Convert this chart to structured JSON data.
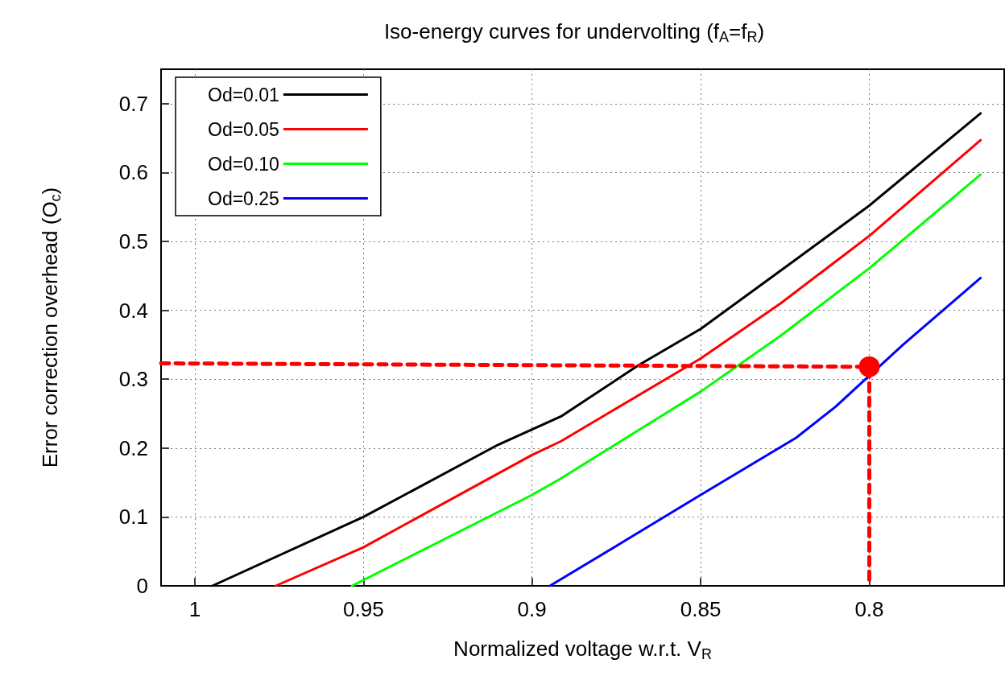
{
  "chart_data": {
    "type": "line",
    "title": "Iso-energy curves for undervolting (f$_{A}$=f$_{R}$)",
    "xlabel": "Normalized voltage w.r.t. V$_{R}$",
    "ylabel": "Error correction overhead (O$_{c}$)",
    "xlim": [
      1.01,
      0.76
    ],
    "ylim": [
      0,
      0.75
    ],
    "xticks": [
      1,
      0.95,
      0.9,
      0.85,
      0.8
    ],
    "yticks": [
      0,
      0.1,
      0.2,
      0.3,
      0.4,
      0.5,
      0.6,
      0.7
    ],
    "grid": true,
    "legend": "top left",
    "marker": "none",
    "line_style": "solid",
    "series": [
      {
        "name": "Od=0.01",
        "color": "#000000",
        "x": [
          0.9948,
          0.95,
          0.91,
          0.8914,
          0.8685,
          0.85,
          0.8217,
          0.8,
          0.767
        ],
        "values": [
          0,
          0.1,
          0.205,
          0.246,
          0.32,
          0.373,
          0.474,
          0.552,
          0.686
        ]
      },
      {
        "name": "Od=0.05",
        "color": "#ff0000",
        "x": [
          0.976,
          0.95,
          0.9,
          0.8914,
          0.85,
          0.8263,
          0.8,
          0.767
        ],
        "values": [
          0,
          0.056,
          0.19,
          0.21,
          0.33,
          0.41,
          0.508,
          0.647
        ]
      },
      {
        "name": "Od=0.10",
        "color": "#00ff00",
        "x": [
          0.9534,
          0.9,
          0.8914,
          0.85,
          0.8263,
          0.8,
          0.767
        ],
        "values": [
          0,
          0.132,
          0.156,
          0.282,
          0.363,
          0.461,
          0.597
        ]
      },
      {
        "name": "Od=0.25",
        "color": "#0000ff",
        "x": [
          0.8947,
          0.8716,
          0.85,
          0.8217,
          0.81,
          0.79,
          0.767
        ],
        "values": [
          0,
          0.068,
          0.132,
          0.215,
          0.26,
          0.35,
          0.447
        ]
      },
      {
        "type": "line",
        "color": "#ff0000",
        "line_style": "dashed",
        "x": [
          1.01,
          0.8,
          0.8
        ],
        "values": [
          0.323,
          0.318,
          0
        ]
      },
      {
        "type": "scatter",
        "color": "#ff0000",
        "marker": "circle",
        "x": [
          0.8
        ],
        "values": [
          0.318
        ]
      }
    ]
  }
}
